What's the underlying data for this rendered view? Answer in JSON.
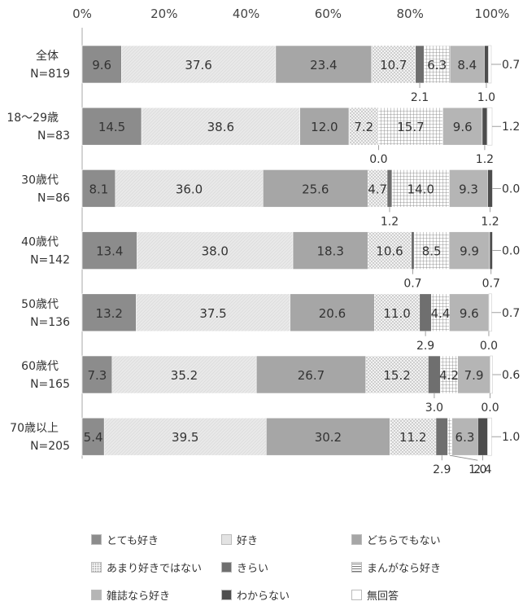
{
  "chart_data": {
    "type": "bar",
    "orientation": "horizontal",
    "stacked": true,
    "categories": [
      {
        "group": "全体",
        "n": "N=819"
      },
      {
        "group": "18～29歳",
        "n": "N=83"
      },
      {
        "group": "30歳代",
        "n": "N=86"
      },
      {
        "group": "40歳代",
        "n": "N=142"
      },
      {
        "group": "50歳代",
        "n": "N=136"
      },
      {
        "group": "60歳代",
        "n": "N=165"
      },
      {
        "group": "70歳以上",
        "n": "N=205"
      }
    ],
    "series": [
      {
        "name": "とても好き",
        "color": "#8c8c8c",
        "pattern": "solid-dark",
        "values": [
          9.6,
          14.5,
          8.1,
          13.4,
          13.2,
          7.3,
          5.4
        ]
      },
      {
        "name": "好き",
        "color": "#e3e3e3",
        "pattern": "solid-light",
        "values": [
          37.6,
          38.6,
          36.0,
          38.0,
          37.5,
          35.2,
          39.5
        ]
      },
      {
        "name": "どちらでもない",
        "color": "#a6a6a6",
        "pattern": "solid-mid",
        "values": [
          23.4,
          12.0,
          25.6,
          18.3,
          20.6,
          26.7,
          30.2
        ]
      },
      {
        "name": "あまり好きではない",
        "color": "#e0e0e0",
        "pattern": "dots",
        "values": [
          10.7,
          7.2,
          4.7,
          10.6,
          11.0,
          15.2,
          11.2
        ]
      },
      {
        "name": "きらい",
        "color": "#6f6f6f",
        "pattern": "solid-darker",
        "values": [
          2.1,
          0.0,
          1.2,
          0.7,
          2.9,
          3.0,
          2.9
        ]
      },
      {
        "name": "まんがなら好き",
        "color": "#f0f0f0",
        "pattern": "grid",
        "values": [
          6.3,
          15.7,
          14.0,
          8.5,
          4.4,
          4.2,
          1.0
        ]
      },
      {
        "name": "雑誌なら好き",
        "color": "#b5b5b5",
        "pattern": "solid-gray",
        "values": [
          8.4,
          9.6,
          9.3,
          9.9,
          9.6,
          7.9,
          6.3
        ]
      },
      {
        "name": "わからない",
        "color": "#4d4d4d",
        "pattern": "solid-black",
        "values": [
          1.0,
          1.2,
          1.2,
          0.7,
          0.0,
          0.0,
          2.4
        ]
      },
      {
        "name": "無回答",
        "color": "#ffffff",
        "pattern": "empty",
        "values": [
          0.7,
          1.2,
          0.0,
          0.0,
          0.7,
          0.6,
          1.0
        ]
      }
    ],
    "x_ticks": [
      "0%",
      "20%",
      "40%",
      "60%",
      "80%",
      "100%"
    ],
    "xlim": [
      0,
      100
    ],
    "legend_position": "bottom",
    "inside_labels": [
      [
        "9.6",
        "37.6",
        "23.4",
        "10.7",
        "",
        "6.3",
        "8.4",
        "",
        ""
      ],
      [
        "14.5",
        "38.6",
        "12.0",
        "7.2",
        "",
        "15.7",
        "9.6",
        "",
        ""
      ],
      [
        "8.1",
        "36.0",
        "25.6",
        "4.7",
        "",
        "14.0",
        "9.3",
        "",
        ""
      ],
      [
        "13.4",
        "38.0",
        "18.3",
        "10.6",
        "",
        "8.5",
        "9.9",
        "",
        ""
      ],
      [
        "13.2",
        "37.5",
        "20.6",
        "11.0",
        "",
        "4.4",
        "9.6",
        "",
        ""
      ],
      [
        "7.3",
        "35.2",
        "26.7",
        "15.2",
        "",
        "4.2",
        "7.9",
        "",
        ""
      ],
      [
        "5.4",
        "39.5",
        "30.2",
        "11.2",
        "",
        "",
        "6.3",
        "",
        ""
      ]
    ],
    "outside_labels": [
      {
        "row": 0,
        "series": 8,
        "text": "0.7",
        "side": "right"
      },
      {
        "row": 0,
        "series": 4,
        "text": "2.1",
        "side": "below"
      },
      {
        "row": 0,
        "series": 7,
        "text": "1.0",
        "side": "below"
      },
      {
        "row": 1,
        "series": 8,
        "text": "1.2",
        "side": "right"
      },
      {
        "row": 1,
        "series": 4,
        "text": "0.0",
        "side": "below"
      },
      {
        "row": 1,
        "series": 7,
        "text": "1.2",
        "side": "below"
      },
      {
        "row": 2,
        "series": 8,
        "text": "0.0",
        "side": "right"
      },
      {
        "row": 2,
        "series": 4,
        "text": "1.2",
        "side": "below"
      },
      {
        "row": 2,
        "series": 7,
        "text": "1.2",
        "side": "below"
      },
      {
        "row": 3,
        "series": 8,
        "text": "0.0",
        "side": "right"
      },
      {
        "row": 3,
        "series": 4,
        "text": "0.7",
        "side": "below"
      },
      {
        "row": 3,
        "series": 7,
        "text": "0.7",
        "side": "below"
      },
      {
        "row": 4,
        "series": 8,
        "text": "0.7",
        "side": "right"
      },
      {
        "row": 4,
        "series": 4,
        "text": "2.9",
        "side": "below"
      },
      {
        "row": 4,
        "series": 7,
        "text": "0.0",
        "side": "below"
      },
      {
        "row": 5,
        "series": 8,
        "text": "0.6",
        "side": "right"
      },
      {
        "row": 5,
        "series": 4,
        "text": "3.0",
        "side": "below"
      },
      {
        "row": 5,
        "series": 7,
        "text": "0.0",
        "side": "below"
      },
      {
        "row": 6,
        "series": 8,
        "text": "1.0",
        "side": "right"
      },
      {
        "row": 6,
        "series": 4,
        "text": "2.9",
        "side": "below"
      },
      {
        "row": 6,
        "series": 5,
        "text": "1.0",
        "side": "below"
      },
      {
        "row": 6,
        "series": 7,
        "text": "2.4",
        "side": "below"
      }
    ]
  }
}
